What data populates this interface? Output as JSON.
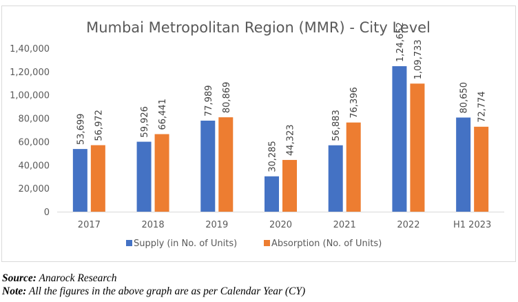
{
  "chart_data": {
    "type": "bar",
    "title": "Mumbai Metropolitan Region (MMR) - City Level",
    "xlabel": "",
    "ylabel": "",
    "categories": [
      "2017",
      "2018",
      "2019",
      "2020",
      "2021",
      "2022",
      "H1 2023"
    ],
    "series": [
      {
        "name": "Supply (in No. of Units)",
        "color": "#4472c4",
        "values": [
          53699,
          59926,
          77989,
          30285,
          56883,
          124652,
          80650
        ],
        "labels": [
          "53,699",
          "59,926",
          "77,989",
          "30,285",
          "56,883",
          "1,24,652",
          "80,650"
        ]
      },
      {
        "name": "Absorption (No. of Units)",
        "color": "#ed7d31",
        "values": [
          56972,
          66441,
          80869,
          44323,
          76396,
          109733,
          72774
        ],
        "labels": [
          "56,972",
          "66,441",
          "80,869",
          "44,323",
          "76,396",
          "1,09,733",
          "72,774"
        ]
      }
    ],
    "ylim": [
      0,
      140000
    ],
    "yticks": [
      0,
      20000,
      40000,
      60000,
      80000,
      100000,
      120000,
      140000
    ],
    "ytick_labels": [
      "0",
      "20,000",
      "40,000",
      "60,000",
      "80,000",
      "1,00,000",
      "1,20,000",
      "1,40,000"
    ],
    "grid": false,
    "legend_position": "bottom",
    "data_labels_rotated": true
  },
  "captions": {
    "source_label": "Source:",
    "source_text": " Anarock Research",
    "note_label": "Note:",
    "note_text": " All the figures in the above graph are as per Calendar Year (CY)"
  }
}
